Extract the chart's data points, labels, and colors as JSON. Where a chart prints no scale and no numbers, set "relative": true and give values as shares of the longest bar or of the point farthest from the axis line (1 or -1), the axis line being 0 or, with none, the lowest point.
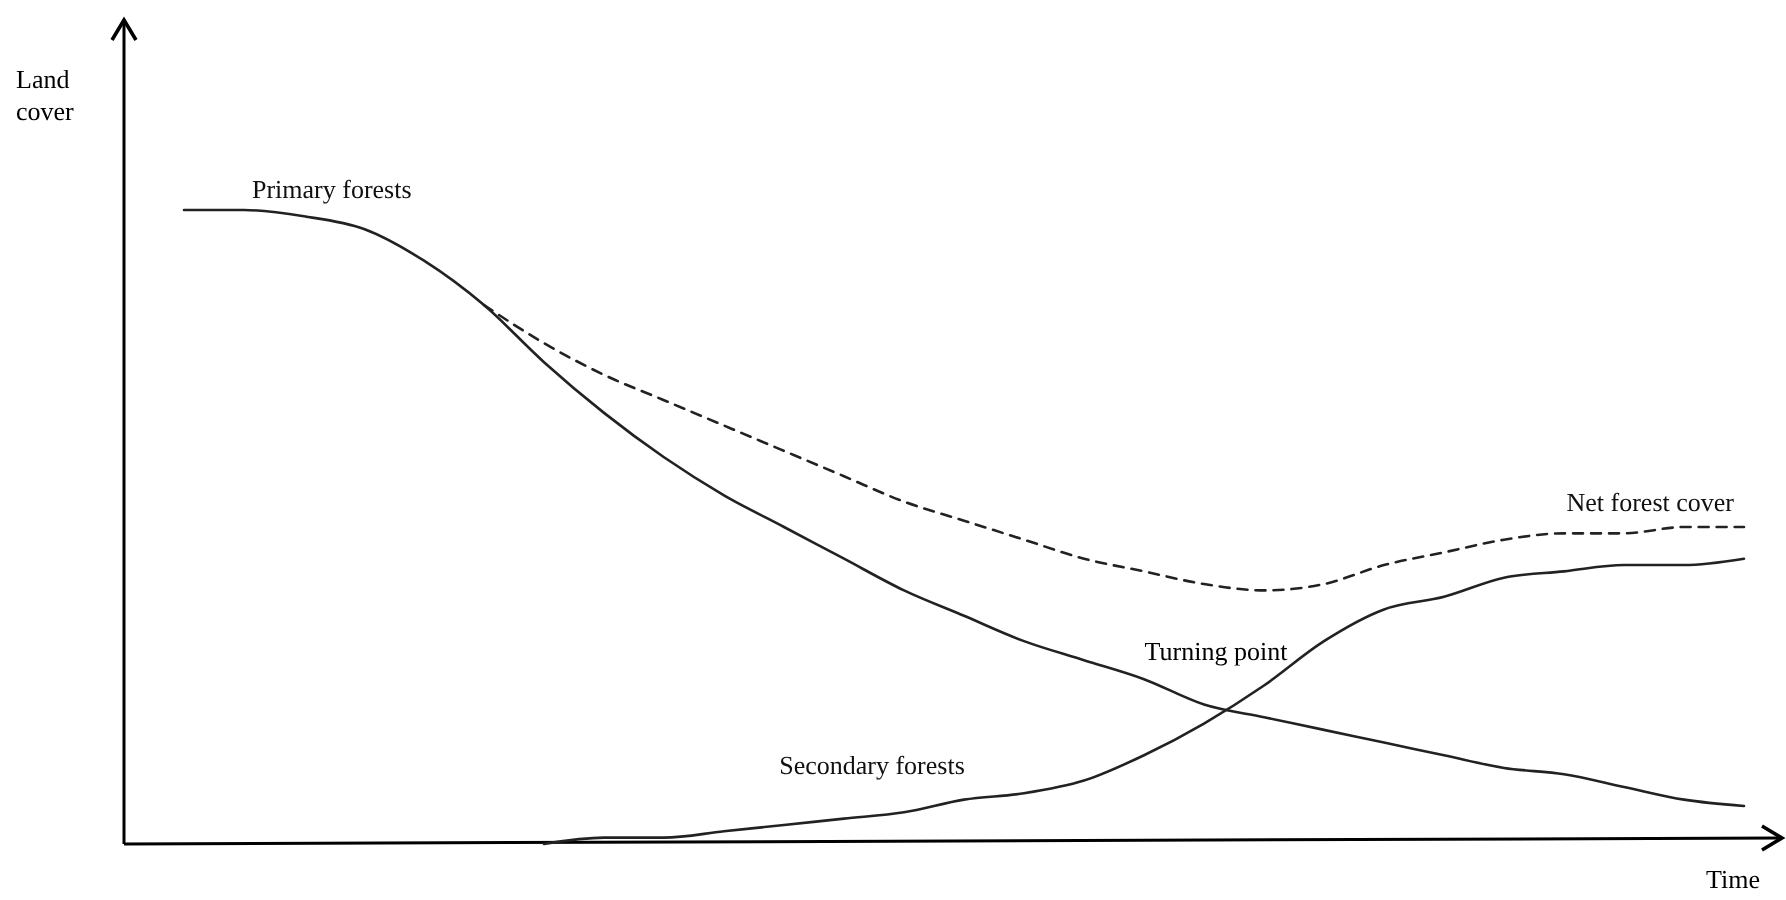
{
  "chart_data": {
    "type": "line",
    "relative": true,
    "xlabel": "Time",
    "ylabel": "Land cover",
    "categories": [
      null,
      null,
      null,
      null,
      null,
      null,
      null,
      null,
      null,
      null,
      null,
      null,
      null,
      null,
      null,
      null,
      null,
      null,
      null,
      null,
      null,
      null,
      null,
      null,
      null,
      null,
      null
    ],
    "series": [
      {
        "name": "Primary forests",
        "color": "#222222",
        "line_style": "solid",
        "values": [
          1,
          1,
          0.99,
          0.97,
          0.92,
          0.85,
          0.76,
          0.68,
          0.61,
          0.55,
          0.5,
          0.45,
          0.4,
          0.36,
          0.32,
          0.29,
          0.26,
          0.22,
          0.2,
          0.18,
          0.16,
          0.14,
          0.12,
          0.11,
          0.09,
          0.07,
          0.06
        ]
      },
      {
        "name": "Net forest cover",
        "color": "#222222",
        "line_style": "dashed",
        "values": [
          null,
          null,
          null,
          null,
          null,
          0.85,
          0.79,
          0.74,
          0.7,
          0.66,
          0.62,
          0.58,
          0.54,
          0.51,
          0.48,
          0.45,
          0.43,
          0.41,
          0.4,
          0.41,
          0.44,
          0.46,
          0.48,
          0.49,
          0.49,
          0.5,
          0.5
        ]
      },
      {
        "name": "Secondary forests",
        "color": "#222222",
        "line_style": "solid",
        "values": [
          null,
          null,
          null,
          null,
          null,
          null,
          0,
          0.01,
          0.01,
          0.02,
          0.03,
          0.04,
          0.05,
          0.07,
          0.08,
          0.1,
          0.14,
          0.19,
          0.25,
          0.32,
          0.37,
          0.39,
          0.42,
          0.43,
          0.44,
          0.44,
          0.45
        ]
      }
    ],
    "annotations": [
      "Turning point"
    ]
  }
}
